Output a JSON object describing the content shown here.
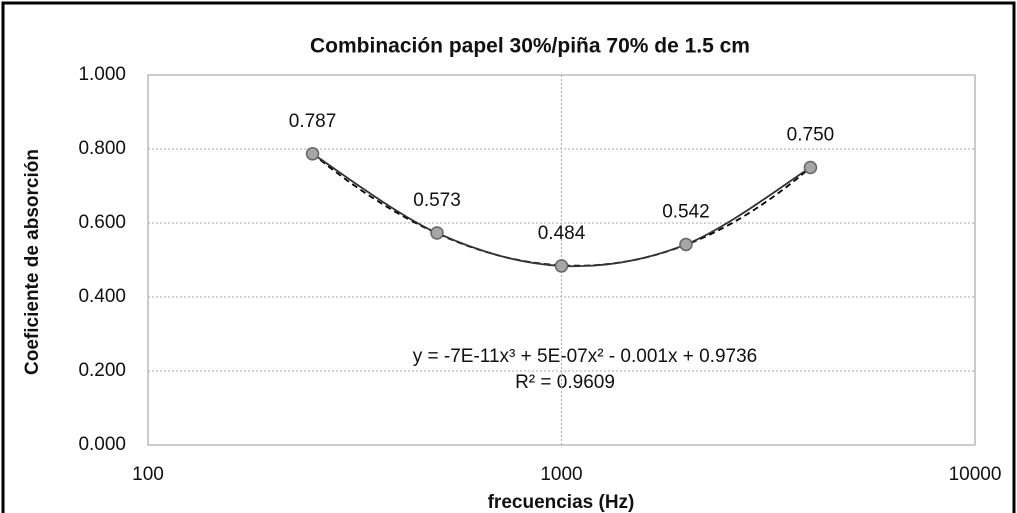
{
  "chart_data": {
    "type": "line",
    "title": "Combinación papel 30%/piña 70% de 1.5 cm",
    "x_label": "frecuencias (Hz)",
    "y_label": "Coeficiente de absorción",
    "x_scale": "log",
    "xlim": [
      100,
      10000
    ],
    "xticks": [
      100,
      1000,
      10000
    ],
    "ylim": [
      0,
      1
    ],
    "yticks": [
      {
        "value": 0,
        "label": "0.000"
      },
      {
        "value": 0.2,
        "label": "0.200"
      },
      {
        "value": 0.4,
        "label": "0.400"
      },
      {
        "value": 0.6,
        "label": "0.600"
      },
      {
        "value": 0.8,
        "label": "0.800"
      },
      {
        "value": 1,
        "label": "1.000"
      }
    ],
    "grid": true,
    "x": [
      250,
      500,
      1000,
      2000,
      4000
    ],
    "series": [
      {
        "color": "#333333",
        "marker_color": "#a6a6a6",
        "values": [
          0.787,
          0.573,
          0.484,
          0.542,
          0.75
        ],
        "value_labels": [
          "0.787",
          "0.573",
          "0.484",
          "0.542",
          "0.750"
        ]
      }
    ],
    "trendline": {
      "type": "polynomial",
      "order": 3,
      "style": "dashed",
      "color": "#000000"
    },
    "annotations": [
      "y = -7E-11x³ + 5E-07x² - 0.001x + 0.9736",
      "R² = 0.9609"
    ]
  }
}
